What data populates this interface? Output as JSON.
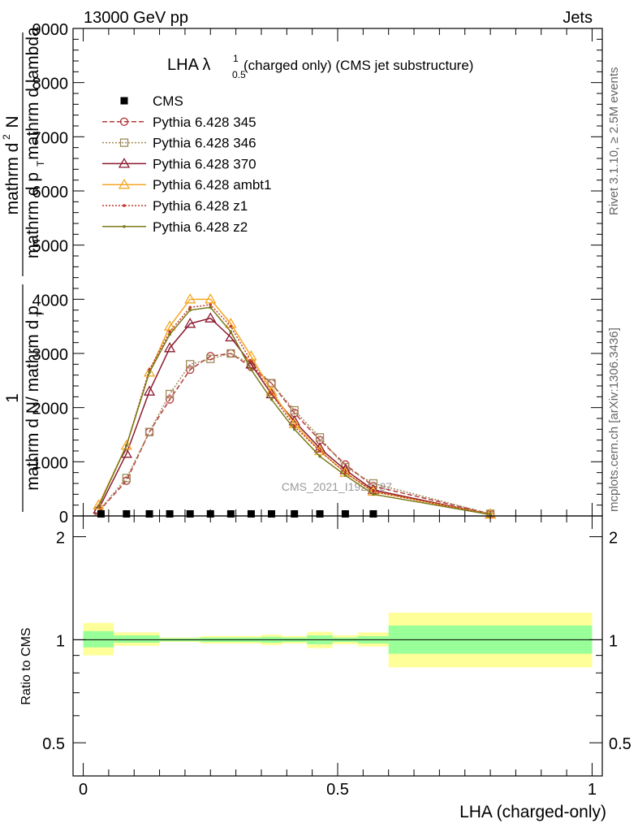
{
  "header": {
    "energy_label": "13000 GeV pp",
    "category_label": "Jets",
    "side_top": "Rivet 3.1.10, ≥ 2.5M events",
    "side_bottom": "mcplots.cern.ch [arXiv:1306.3436]",
    "watermark": "CMS_2021_I1920187"
  },
  "chart_data": {
    "type": "line",
    "title_main": "LHA λ",
    "title_sup": "1",
    "title_sub": "0.5",
    "title_rest": "(charged only) (CMS jet substructure)",
    "ylabel_top_num": "1",
    "ylabel_top_den": "mathrm d N/ mathrm d p",
    "ylabel_top_den_sub": "T",
    "ylabel_main_num": "mathrm d",
    "ylabel_main_num_sup": "2",
    "ylabel_main_num_rest": "N",
    "ylabel_main_den": "mathrm d p",
    "ylabel_main_den_sub": "T",
    "ylabel_main_den_rest": "mathrm d lambda",
    "xlabel": "LHA (charged-only)",
    "ylabel_ratio": "Ratio to CMS",
    "xlim": [
      -0.02,
      1.02
    ],
    "ylim": [
      0,
      9000
    ],
    "ratio_ylim": [
      0.4,
      2.3
    ],
    "x_ticks": [
      {
        "v": 0,
        "label": "0"
      },
      {
        "v": 0.5,
        "label": "0.5"
      },
      {
        "v": 1,
        "label": "1"
      }
    ],
    "y_ticks": [
      {
        "v": 0,
        "label": "0"
      },
      {
        "v": 1000,
        "label": "1000"
      },
      {
        "v": 2000,
        "label": "2000"
      },
      {
        "v": 3000,
        "label": "3000"
      },
      {
        "v": 4000,
        "label": "4000"
      },
      {
        "v": 5000,
        "label": "5000"
      },
      {
        "v": 6000,
        "label": "6000"
      },
      {
        "v": 7000,
        "label": "7000"
      },
      {
        "v": 8000,
        "label": "8000"
      },
      {
        "v": 9000,
        "label": "9000"
      }
    ],
    "ratio_ticks": [
      {
        "v": 0.5,
        "label": "0.5"
      },
      {
        "v": 1,
        "label": "1"
      },
      {
        "v": 2,
        "label": "2"
      }
    ],
    "cms": {
      "name": "CMS",
      "x": [
        0.035,
        0.085,
        0.13,
        0.17,
        0.21,
        0.25,
        0.29,
        0.33,
        0.37,
        0.415,
        0.465,
        0.515,
        0.57
      ],
      "y": [
        8,
        8,
        8,
        8,
        8,
        8,
        8,
        8,
        8,
        8,
        8,
        8,
        8
      ]
    },
    "series": [
      {
        "name": "Pythia 6.428 345",
        "color": "#b5383a",
        "dash": "6,3",
        "marker": "circle",
        "x": [
          0.03,
          0.085,
          0.13,
          0.17,
          0.21,
          0.25,
          0.29,
          0.33,
          0.37,
          0.415,
          0.465,
          0.515,
          0.57,
          0.8
        ],
        "y": [
          80,
          650,
          1550,
          2150,
          2700,
          2950,
          3000,
          2750,
          2450,
          1900,
          1400,
          950,
          550,
          40
        ]
      },
      {
        "name": "Pythia 6.428 346",
        "color": "#a08a5a",
        "dash": "2,2",
        "marker": "square",
        "x": [
          0.03,
          0.085,
          0.13,
          0.17,
          0.21,
          0.25,
          0.29,
          0.33,
          0.37,
          0.415,
          0.465,
          0.515,
          0.57,
          0.8
        ],
        "y": [
          90,
          700,
          1550,
          2250,
          2800,
          2900,
          3000,
          2800,
          2450,
          1950,
          1450,
          900,
          600,
          40
        ]
      },
      {
        "name": "Pythia 6.428 370",
        "color": "#8b1a2e",
        "dash": "",
        "marker": "triangle",
        "x": [
          0.03,
          0.085,
          0.13,
          0.17,
          0.21,
          0.25,
          0.29,
          0.33,
          0.37,
          0.415,
          0.465,
          0.515,
          0.57,
          0.8
        ],
        "y": [
          120,
          1150,
          2300,
          3100,
          3550,
          3650,
          3300,
          2800,
          2250,
          1750,
          1250,
          850,
          480,
          30
        ]
      },
      {
        "name": "Pythia 6.428 ambt1",
        "color": "#f5a623",
        "dash": "",
        "marker": "triangle",
        "x": [
          0.03,
          0.085,
          0.13,
          0.17,
          0.21,
          0.25,
          0.29,
          0.33,
          0.37,
          0.415,
          0.465,
          0.515,
          0.57,
          0.8
        ],
        "y": [
          200,
          1300,
          2650,
          3500,
          4000,
          4000,
          3550,
          2950,
          2300,
          1700,
          1200,
          800,
          450,
          30
        ]
      },
      {
        "name": "Pythia 6.428 z1",
        "color": "#c0392b",
        "dash": "2,2",
        "marker": "dot",
        "x": [
          0.03,
          0.085,
          0.13,
          0.17,
          0.21,
          0.25,
          0.29,
          0.33,
          0.37,
          0.415,
          0.465,
          0.515,
          0.57,
          0.8
        ],
        "y": [
          180,
          1300,
          2700,
          3400,
          3850,
          3900,
          3500,
          2850,
          2250,
          1650,
          1200,
          800,
          450,
          30
        ]
      },
      {
        "name": "Pythia 6.428 z2",
        "color": "#7a7a1a",
        "dash": "",
        "marker": "dot",
        "x": [
          0.03,
          0.085,
          0.13,
          0.17,
          0.21,
          0.25,
          0.29,
          0.33,
          0.37,
          0.415,
          0.465,
          0.515,
          0.57,
          0.8
        ],
        "y": [
          170,
          1300,
          2650,
          3350,
          3800,
          3850,
          3400,
          2700,
          2150,
          1600,
          1100,
          750,
          400,
          25
        ]
      }
    ],
    "ratio_bands": [
      {
        "x0": 0.0,
        "x1": 0.06,
        "inner": [
          0.95,
          1.06
        ],
        "outer": [
          0.9,
          1.12
        ]
      },
      {
        "x0": 0.06,
        "x1": 0.15,
        "inner": [
          0.98,
          1.03
        ],
        "outer": [
          0.96,
          1.05
        ]
      },
      {
        "x0": 0.15,
        "x1": 0.23,
        "inner": [
          0.99,
          1.01
        ],
        "outer": [
          0.985,
          1.015
        ]
      },
      {
        "x0": 0.23,
        "x1": 0.35,
        "inner": [
          0.985,
          1.015
        ],
        "outer": [
          0.975,
          1.025
        ]
      },
      {
        "x0": 0.35,
        "x1": 0.39,
        "inner": [
          0.98,
          1.02
        ],
        "outer": [
          0.965,
          1.035
        ]
      },
      {
        "x0": 0.39,
        "x1": 0.44,
        "inner": [
          0.985,
          1.015
        ],
        "outer": [
          0.975,
          1.025
        ]
      },
      {
        "x0": 0.44,
        "x1": 0.49,
        "inner": [
          0.97,
          1.03
        ],
        "outer": [
          0.945,
          1.055
        ]
      },
      {
        "x0": 0.49,
        "x1": 0.54,
        "inner": [
          0.985,
          1.015
        ],
        "outer": [
          0.97,
          1.03
        ]
      },
      {
        "x0": 0.54,
        "x1": 0.6,
        "inner": [
          0.975,
          1.025
        ],
        "outer": [
          0.955,
          1.05
        ]
      },
      {
        "x0": 0.6,
        "x1": 1.0,
        "inner": [
          0.91,
          1.1
        ],
        "outer": [
          0.83,
          1.2
        ]
      }
    ],
    "colors": {
      "band_inner": "#99ff99",
      "band_outer": "#ffff99"
    }
  }
}
